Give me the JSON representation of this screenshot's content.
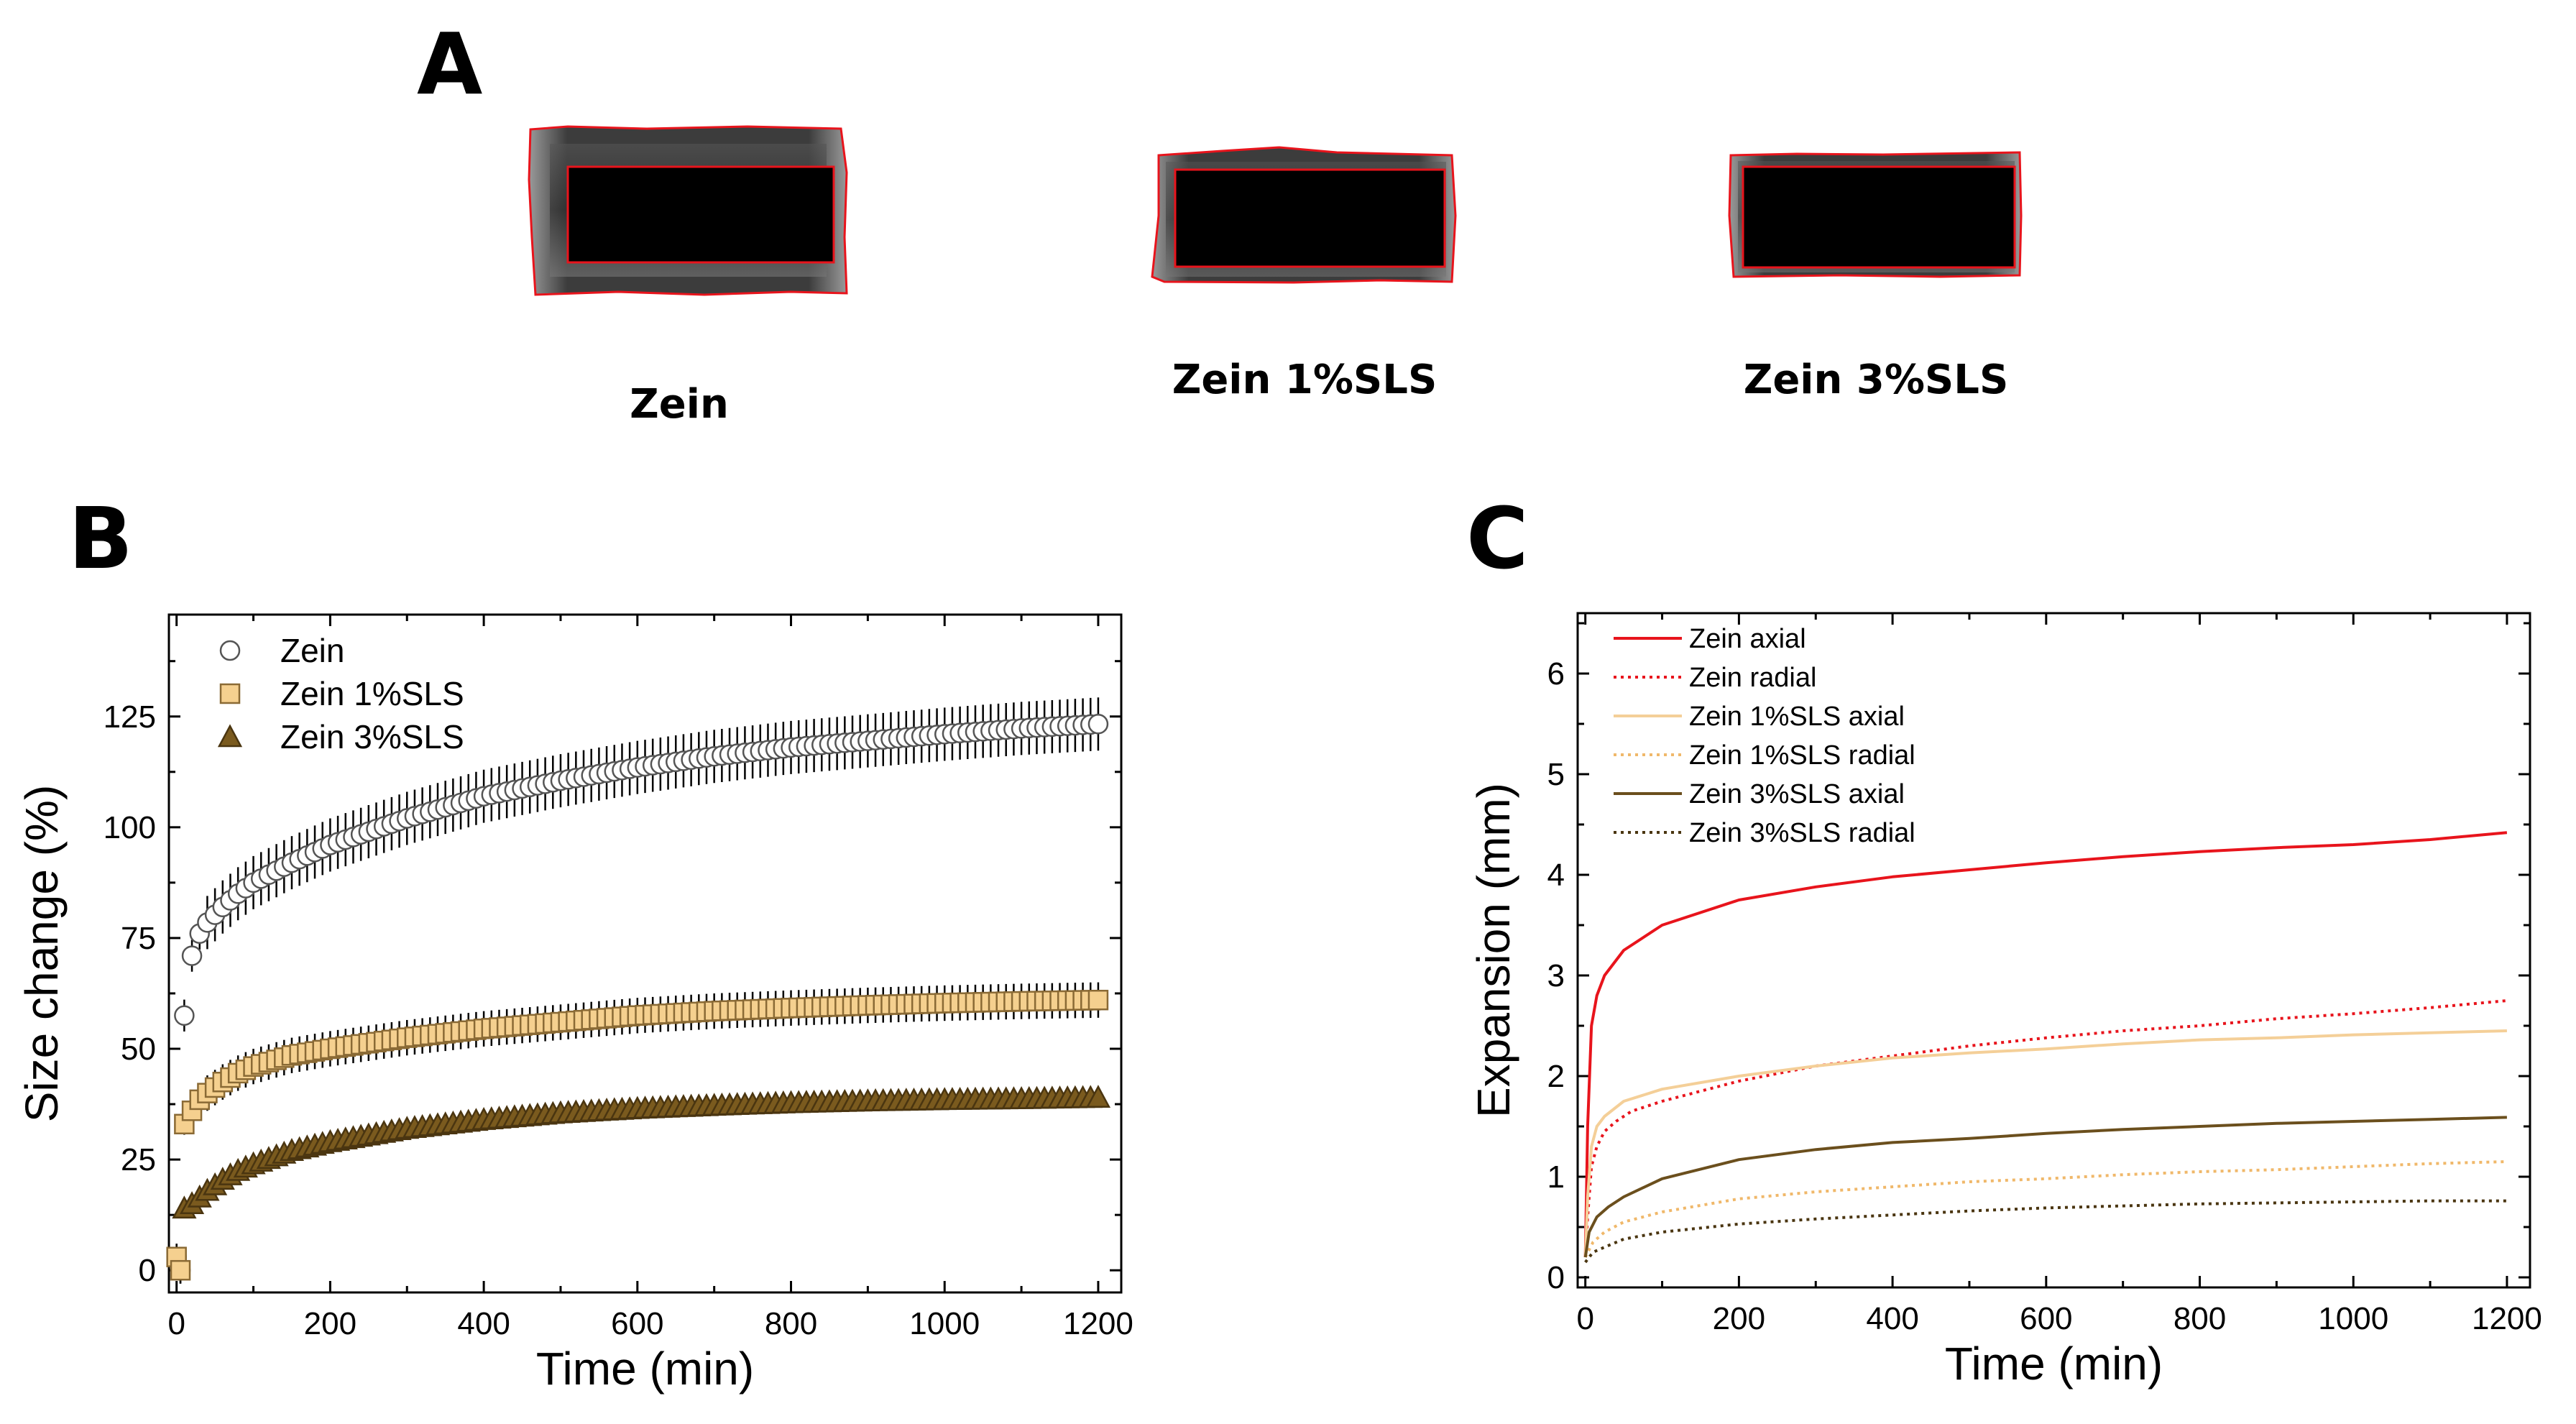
{
  "panel_a": {
    "label": "A",
    "samples": [
      {
        "name": "Zein"
      },
      {
        "name": "Zein 1%SLS"
      },
      {
        "name": "Zein 3%SLS"
      }
    ],
    "outline_color": "#e8141c"
  },
  "chart_data": [
    {
      "panel": "B",
      "type": "scatter",
      "title": "",
      "xlabel": "Time (min)",
      "ylabel": "Size change (%)",
      "xlim": [
        -10,
        1230
      ],
      "ylim": [
        -5,
        148
      ],
      "xticks": [
        0,
        200,
        400,
        600,
        800,
        1000,
        1200
      ],
      "yticks": [
        0,
        25,
        50,
        75,
        100,
        125
      ],
      "grid": false,
      "legend": "top-left",
      "x_step": 10,
      "series": [
        {
          "name": "Zein",
          "marker": "circle",
          "fill": "#ffffff",
          "stroke": "#555555",
          "points": [
            [
              0,
              3
            ],
            [
              5,
              0
            ],
            [
              10,
              57.5
            ],
            [
              20,
              71
            ],
            [
              30,
              76
            ],
            [
              40,
              78.5
            ],
            [
              60,
              82
            ],
            [
              80,
              85
            ],
            [
              100,
              87.5
            ],
            [
              150,
              92
            ],
            [
              200,
              96
            ],
            [
              300,
              102
            ],
            [
              400,
              107
            ],
            [
              500,
              110.5
            ],
            [
              600,
              113.5
            ],
            [
              700,
              116
            ],
            [
              800,
              118
            ],
            [
              900,
              119.5
            ],
            [
              1000,
              121
            ],
            [
              1100,
              122.3
            ],
            [
              1200,
              123.3
            ]
          ],
          "err": 6
        },
        {
          "name": "Zein 1%SLS",
          "marker": "square",
          "fill": "#f5d08f",
          "stroke": "#8a6a35",
          "points": [
            [
              0,
              3
            ],
            [
              5,
              0
            ],
            [
              10,
              33
            ],
            [
              20,
              36
            ],
            [
              30,
              38.5
            ],
            [
              40,
              40
            ],
            [
              60,
              42.5
            ],
            [
              80,
              44.5
            ],
            [
              100,
              46
            ],
            [
              150,
              48.5
            ],
            [
              200,
              50
            ],
            [
              300,
              52.5
            ],
            [
              400,
              54.5
            ],
            [
              500,
              56
            ],
            [
              600,
              57.5
            ],
            [
              700,
              58.5
            ],
            [
              800,
              59.2
            ],
            [
              900,
              59.8
            ],
            [
              1000,
              60.3
            ],
            [
              1100,
              60.7
            ],
            [
              1200,
              61
            ]
          ],
          "err": 4
        },
        {
          "name": "Zein 3%SLS",
          "marker": "triangle",
          "fill": "#7a5a1e",
          "stroke": "#4a3510",
          "points": [
            [
              10,
              14
            ],
            [
              20,
              15
            ],
            [
              30,
              16.5
            ],
            [
              40,
              18
            ],
            [
              60,
              20.5
            ],
            [
              80,
              22.5
            ],
            [
              100,
              24
            ],
            [
              150,
              27
            ],
            [
              200,
              29
            ],
            [
              300,
              32
            ],
            [
              400,
              34
            ],
            [
              500,
              35.5
            ],
            [
              600,
              36.5
            ],
            [
              700,
              37.2
            ],
            [
              800,
              37.8
            ],
            [
              900,
              38.2
            ],
            [
              1000,
              38.5
            ],
            [
              1100,
              38.7
            ],
            [
              1200,
              39
            ]
          ],
          "err": 2
        }
      ]
    },
    {
      "panel": "C",
      "type": "line",
      "title": "",
      "xlabel": "Time (min)",
      "ylabel": "Expansion (mm)",
      "xlim": [
        -10,
        1230
      ],
      "ylim": [
        -0.1,
        6.6
      ],
      "xticks": [
        0,
        200,
        400,
        600,
        800,
        1000,
        1200
      ],
      "yticks": [
        0,
        1,
        2,
        3,
        4,
        5,
        6
      ],
      "grid": false,
      "legend": "top-left",
      "series": [
        {
          "name": "Zein axial",
          "color": "#e8141c",
          "dash": "solid",
          "points": [
            [
              0,
              0.2
            ],
            [
              3,
              1.5
            ],
            [
              8,
              2.5
            ],
            [
              15,
              2.8
            ],
            [
              25,
              3.0
            ],
            [
              50,
              3.25
            ],
            [
              100,
              3.5
            ],
            [
              200,
              3.75
            ],
            [
              300,
              3.88
            ],
            [
              400,
              3.98
            ],
            [
              500,
              4.05
            ],
            [
              600,
              4.12
            ],
            [
              700,
              4.18
            ],
            [
              800,
              4.23
            ],
            [
              900,
              4.27
            ],
            [
              1000,
              4.3
            ],
            [
              1100,
              4.35
            ],
            [
              1200,
              4.42
            ]
          ]
        },
        {
          "name": "Zein radial",
          "color": "#e8141c",
          "dash": "dotted",
          "points": [
            [
              0,
              0.2
            ],
            [
              3,
              0.6
            ],
            [
              8,
              1.1
            ],
            [
              15,
              1.3
            ],
            [
              25,
              1.45
            ],
            [
              40,
              1.55
            ],
            [
              60,
              1.65
            ],
            [
              100,
              1.75
            ],
            [
              200,
              1.95
            ],
            [
              300,
              2.1
            ],
            [
              400,
              2.2
            ],
            [
              500,
              2.3
            ],
            [
              600,
              2.38
            ],
            [
              700,
              2.45
            ],
            [
              800,
              2.5
            ],
            [
              900,
              2.57
            ],
            [
              1000,
              2.62
            ],
            [
              1100,
              2.68
            ],
            [
              1200,
              2.75
            ]
          ]
        },
        {
          "name": "Zein 1%SLS axial",
          "color": "#f4cf98",
          "dash": "solid",
          "points": [
            [
              0,
              0.2
            ],
            [
              3,
              0.8
            ],
            [
              8,
              1.3
            ],
            [
              15,
              1.5
            ],
            [
              25,
              1.6
            ],
            [
              50,
              1.75
            ],
            [
              100,
              1.87
            ],
            [
              200,
              2.0
            ],
            [
              300,
              2.1
            ],
            [
              400,
              2.18
            ],
            [
              500,
              2.23
            ],
            [
              600,
              2.27
            ],
            [
              700,
              2.32
            ],
            [
              800,
              2.36
            ],
            [
              900,
              2.38
            ],
            [
              1000,
              2.41
            ],
            [
              1100,
              2.43
            ],
            [
              1200,
              2.45
            ]
          ]
        },
        {
          "name": "Zein 1%SLS radial",
          "color": "#f0b86a",
          "dash": "dotted",
          "points": [
            [
              0,
              0.2
            ],
            [
              10,
              0.35
            ],
            [
              25,
              0.45
            ],
            [
              50,
              0.55
            ],
            [
              100,
              0.65
            ],
            [
              200,
              0.78
            ],
            [
              300,
              0.85
            ],
            [
              400,
              0.9
            ],
            [
              500,
              0.95
            ],
            [
              600,
              0.98
            ],
            [
              700,
              1.02
            ],
            [
              800,
              1.05
            ],
            [
              900,
              1.07
            ],
            [
              1000,
              1.1
            ],
            [
              1100,
              1.13
            ],
            [
              1200,
              1.15
            ]
          ]
        },
        {
          "name": "Zein 3%SLS axial",
          "color": "#6b4f1d",
          "dash": "solid",
          "points": [
            [
              0,
              0.2
            ],
            [
              5,
              0.45
            ],
            [
              15,
              0.6
            ],
            [
              30,
              0.7
            ],
            [
              50,
              0.8
            ],
            [
              100,
              0.98
            ],
            [
              200,
              1.17
            ],
            [
              300,
              1.27
            ],
            [
              400,
              1.34
            ],
            [
              500,
              1.38
            ],
            [
              600,
              1.43
            ],
            [
              700,
              1.47
            ],
            [
              800,
              1.5
            ],
            [
              900,
              1.53
            ],
            [
              1000,
              1.55
            ],
            [
              1100,
              1.57
            ],
            [
              1200,
              1.59
            ]
          ]
        },
        {
          "name": "Zein 3%SLS radial",
          "color": "#4a3510",
          "dash": "dotted",
          "points": [
            [
              0,
              0.15
            ],
            [
              10,
              0.25
            ],
            [
              25,
              0.3
            ],
            [
              50,
              0.38
            ],
            [
              100,
              0.45
            ],
            [
              200,
              0.53
            ],
            [
              300,
              0.58
            ],
            [
              400,
              0.62
            ],
            [
              500,
              0.66
            ],
            [
              600,
              0.69
            ],
            [
              700,
              0.71
            ],
            [
              800,
              0.73
            ],
            [
              900,
              0.74
            ],
            [
              1000,
              0.75
            ],
            [
              1100,
              0.76
            ],
            [
              1200,
              0.76
            ]
          ]
        }
      ]
    }
  ]
}
